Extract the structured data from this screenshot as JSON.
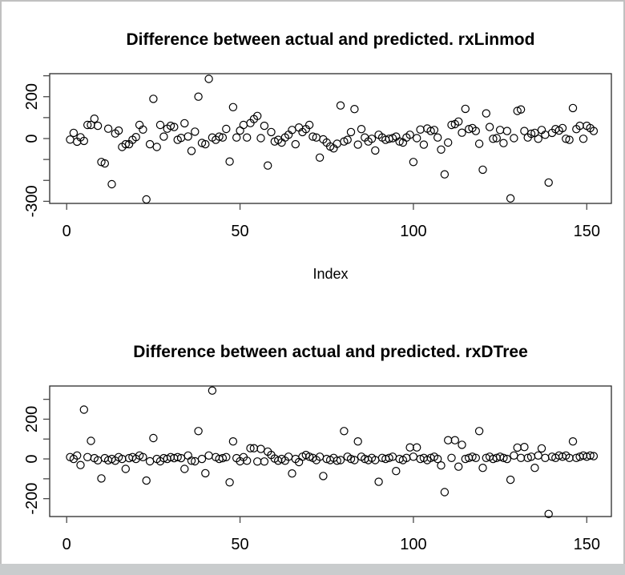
{
  "frame": {
    "border_color": "#c0c0c0",
    "canvas_color": "#ffffff",
    "bottom_strip_color": "#c9cccd"
  },
  "chart_data": [
    {
      "id": "rxLinmod",
      "type": "scatter",
      "title": "Difference between actual and predicted. rxLinmod",
      "xlabel": "Index",
      "ylabel": "",
      "marker": "open-circle",
      "point_color": "#000000",
      "grid": false,
      "legend": "none",
      "x_is_index_1_to_n": true,
      "n": 152,
      "x_ticks": [
        0,
        50,
        100,
        150
      ],
      "y_ticks": [
        300,
        200,
        100,
        0,
        -100,
        -200,
        -300
      ],
      "y_tick_labels": [
        200,
        0,
        -300
      ],
      "xlim": [
        -4.9,
        157.1
      ],
      "ylim": [
        -310,
        310
      ],
      "y": [
        -5,
        27,
        -15,
        6,
        -11,
        65,
        65,
        95,
        61,
        -112,
        -119,
        47,
        -218,
        24,
        38,
        -40,
        -27,
        -27,
        -6,
        7,
        65,
        43,
        -291,
        -27,
        190,
        -40,
        65,
        9,
        47,
        61,
        55,
        -6,
        3,
        73,
        10,
        -59,
        33,
        200,
        -21,
        -27,
        285,
        5,
        -6,
        9,
        5,
        46,
        -110,
        150,
        5,
        38,
        65,
        5,
        74,
        93,
        108,
        2,
        61,
        -129,
        31,
        -14,
        -6,
        -19,
        5,
        18,
        41,
        -27,
        53,
        31,
        45,
        65,
        9,
        5,
        -91,
        -4,
        -19,
        -38,
        -47,
        -25,
        158,
        -14,
        -6,
        31,
        141,
        -29,
        45,
        5,
        -14,
        -1,
        -57,
        18,
        5,
        -6,
        -1,
        2,
        9,
        -14,
        -19,
        5,
        18,
        -112,
        2,
        43,
        -29,
        48,
        36,
        41,
        5,
        -53,
        -171,
        -19,
        65,
        69,
        81,
        28,
        142,
        45,
        50,
        36,
        -25,
        -149,
        120,
        55,
        -1,
        2,
        41,
        -22,
        36,
        -286,
        2,
        132,
        139,
        36,
        5,
        23,
        27,
        -1,
        41,
        18,
        -210,
        27,
        45,
        38,
        50,
        -1,
        -6,
        146,
        45,
        61,
        -1,
        61,
        50,
        36
      ]
    },
    {
      "id": "rxDTree",
      "type": "scatter",
      "title": "Difference between actual and predicted. rxDTree",
      "xlabel": "",
      "ylabel": "",
      "marker": "open-circle",
      "point_color": "#000000",
      "grid": false,
      "legend": "none",
      "x_is_index_1_to_n": true,
      "n": 152,
      "x_ticks": [
        0,
        50,
        100,
        150
      ],
      "y_ticks": [
        300,
        200,
        100,
        0,
        -100,
        -200
      ],
      "y_tick_labels": [
        200,
        0,
        -200
      ],
      "xlim": [
        -4.9,
        157.1
      ],
      "ylim": [
        -290,
        367
      ],
      "y": [
        9,
        0,
        17,
        -31,
        248,
        9,
        91,
        4,
        -7,
        -98,
        4,
        -7,
        0,
        -9,
        9,
        0,
        -50,
        4,
        9,
        0,
        17,
        9,
        -109,
        -12,
        105,
        0,
        -12,
        4,
        0,
        9,
        4,
        9,
        4,
        -50,
        17,
        -9,
        -12,
        140,
        0,
        -72,
        17,
        344,
        9,
        0,
        4,
        9,
        -118,
        88,
        4,
        -12,
        9,
        -9,
        54,
        54,
        -13,
        50,
        -13,
        37,
        20,
        2,
        -9,
        0,
        -9,
        11,
        -73,
        0,
        -16,
        11,
        20,
        11,
        5,
        -6,
        11,
        -86,
        0,
        -6,
        5,
        -9,
        -6,
        140,
        11,
        0,
        -6,
        88,
        11,
        0,
        -6,
        5,
        -6,
        -115,
        5,
        0,
        5,
        11,
        -61,
        0,
        -6,
        5,
        58,
        11,
        58,
        0,
        5,
        -6,
        5,
        11,
        0,
        -33,
        -167,
        94,
        5,
        94,
        -39,
        71,
        0,
        5,
        11,
        5,
        140,
        -45,
        5,
        11,
        0,
        5,
        11,
        5,
        0,
        -105,
        17,
        57,
        5,
        60,
        5,
        11,
        -45,
        17,
        53,
        5,
        -277,
        11,
        5,
        17,
        11,
        17,
        5,
        88,
        5,
        11,
        17,
        11,
        17,
        14
      ]
    }
  ]
}
